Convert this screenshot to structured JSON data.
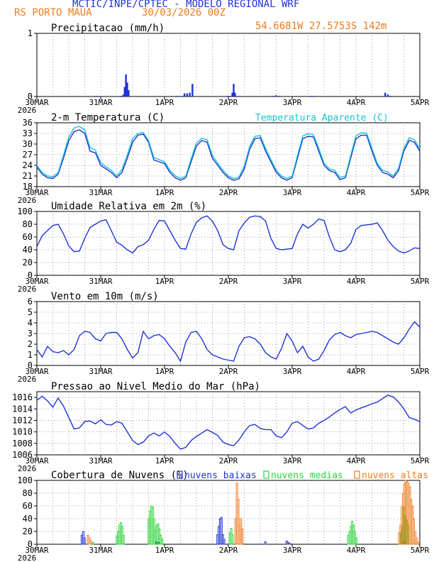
{
  "header": {
    "title": "MCTIC/INPE/CPTEC - MODELO REGIONAL WRF",
    "station": "RS PORTO MAUA",
    "date": "30/03/2026 00Z",
    "coords": "54.6681W 27.5753S 142m",
    "title_color": "#1f33d6",
    "accent_color": "#f07b1e"
  },
  "x_axis": {
    "ticks": [
      "30MAR",
      "31MAR",
      "1APR",
      "2APR",
      "3APR",
      "4APR",
      "5APR"
    ],
    "year": "2026"
  },
  "chart_data": [
    {
      "type": "bar",
      "title": "Precipitacao (mm/h)",
      "ylim": [
        0,
        1
      ],
      "yticks": [
        0,
        1
      ],
      "color": "#1f33d6",
      "x_hours": [
        22,
        22.7,
        31.5,
        32.5,
        33,
        33.5,
        34,
        34.5,
        52.5,
        53,
        54.5,
        55.5,
        56.5,
        57.5,
        58.5,
        71.5,
        72.5,
        73.5,
        74,
        74.5,
        75,
        89,
        90,
        91,
        103,
        104,
        131,
        132,
        133
      ],
      "values": [
        0.01,
        0.01,
        0.01,
        0.03,
        0.15,
        0.35,
        0.22,
        0.1,
        0.01,
        0.01,
        0.01,
        0.05,
        0.05,
        0.06,
        0.2,
        0.01,
        0.01,
        0.06,
        0.2,
        0.06,
        0.01,
        0.01,
        0.02,
        0.01,
        0.01,
        0.01,
        0.06,
        0.03,
        0.01
      ]
    },
    {
      "type": "line",
      "title": "2-m Temperatura (C)",
      "legend_label": "Temperatura Aparente (C)",
      "ylim": [
        18,
        36
      ],
      "yticks": [
        18,
        21,
        24,
        27,
        30,
        33,
        36
      ],
      "series": [
        {
          "name": "Temperatura (C)",
          "color": "#1f33d6",
          "x_hours": [
            0,
            2,
            4,
            6,
            8,
            10,
            12,
            14,
            16,
            18,
            20,
            22,
            24,
            26,
            28,
            30,
            32,
            34,
            36,
            38,
            40,
            42,
            44,
            46,
            48,
            50,
            52,
            54,
            56,
            58,
            60,
            62,
            64,
            66,
            68,
            70,
            72,
            74,
            76,
            78,
            80,
            82,
            84,
            86,
            88,
            90,
            92,
            94,
            96,
            98,
            100,
            102,
            104,
            106,
            108,
            110,
            112,
            114,
            116,
            118,
            120,
            122,
            124,
            126,
            128,
            130,
            132,
            134,
            136,
            138,
            140,
            142,
            144
          ],
          "values": [
            23.5,
            21.5,
            20.5,
            20.3,
            21.5,
            26,
            31,
            33.5,
            34,
            33,
            28,
            27.5,
            24,
            23,
            22,
            20.5,
            22,
            26,
            30.5,
            32.5,
            32.8,
            30.5,
            25.5,
            25,
            24.5,
            22,
            20.5,
            19.8,
            20.5,
            25,
            29.5,
            31,
            30.5,
            26,
            24,
            22,
            20.5,
            19.8,
            20.2,
            23,
            28.5,
            31.5,
            31.8,
            28,
            25,
            22,
            20.5,
            19.8,
            20.5,
            26,
            31.5,
            32.2,
            32,
            28,
            24,
            22.5,
            22,
            20,
            20.5,
            26,
            31.5,
            32.5,
            32.5,
            28,
            24,
            22,
            21.5,
            20.5,
            22.5,
            28,
            31,
            30.5,
            28
          ]
        },
        {
          "name": "Temperatura Aparente (C)",
          "color": "#19c4cc",
          "x_hours": [
            0,
            2,
            4,
            6,
            8,
            10,
            12,
            14,
            16,
            18,
            20,
            22,
            24,
            26,
            28,
            30,
            32,
            34,
            36,
            38,
            40,
            42,
            44,
            46,
            48,
            50,
            52,
            54,
            56,
            58,
            60,
            62,
            64,
            66,
            68,
            70,
            72,
            74,
            76,
            78,
            80,
            82,
            84,
            86,
            88,
            90,
            92,
            94,
            96,
            98,
            100,
            102,
            104,
            106,
            108,
            110,
            112,
            114,
            116,
            118,
            120,
            122,
            124,
            126,
            128,
            130,
            132,
            134,
            136,
            138,
            140,
            142,
            144
          ],
          "values": [
            24,
            22,
            21,
            20.8,
            22,
            26.8,
            32,
            34.5,
            35,
            34,
            29,
            28.3,
            24.8,
            23.6,
            22.6,
            21,
            22.8,
            27,
            31.5,
            33,
            33.2,
            31,
            26.2,
            25.6,
            25,
            22.6,
            21.1,
            20.3,
            21,
            25.8,
            30.3,
            31.6,
            31.2,
            26.8,
            24.6,
            22.6,
            21,
            20.3,
            20.7,
            23.8,
            29.3,
            32.2,
            32.4,
            28.8,
            25.6,
            22.6,
            21,
            20.3,
            21,
            26.8,
            32.3,
            32.9,
            32.6,
            28.8,
            24.6,
            23,
            22.6,
            20.6,
            21,
            26.8,
            32.3,
            33.2,
            33.1,
            28.8,
            24.6,
            22.6,
            22.1,
            21,
            23.2,
            28.8,
            31.8,
            31.2,
            28.6
          ]
        }
      ]
    },
    {
      "type": "line",
      "title": "Umidade Relativa em 2m (%)",
      "ylim": [
        0,
        100
      ],
      "yticks": [
        0,
        20,
        40,
        60,
        80,
        100
      ],
      "series": [
        {
          "name": "Umidade Relativa (%)",
          "color": "#1f33d6",
          "x_hours": [
            0,
            2,
            4,
            6,
            8,
            10,
            12,
            14,
            16,
            18,
            20,
            22,
            24,
            26,
            28,
            30,
            32,
            34,
            36,
            38,
            40,
            42,
            44,
            46,
            48,
            50,
            52,
            54,
            56,
            58,
            60,
            62,
            64,
            66,
            68,
            70,
            72,
            74,
            76,
            78,
            80,
            82,
            84,
            86,
            88,
            90,
            92,
            94,
            96,
            98,
            100,
            102,
            104,
            106,
            108,
            110,
            112,
            114,
            116,
            118,
            120,
            122,
            124,
            126,
            128,
            130,
            132,
            134,
            136,
            138,
            140,
            142,
            144
          ],
          "values": [
            45,
            62,
            70,
            78,
            80,
            65,
            46,
            37,
            38,
            58,
            75,
            80,
            85,
            87,
            70,
            52,
            47,
            40,
            35,
            45,
            48,
            55,
            72,
            86,
            85,
            70,
            55,
            42,
            41,
            65,
            83,
            90,
            93,
            85,
            70,
            48,
            42,
            40,
            70,
            82,
            91,
            93,
            92,
            85,
            58,
            42,
            40,
            41,
            42,
            65,
            80,
            74,
            80,
            88,
            86,
            60,
            40,
            37,
            40,
            50,
            72,
            78,
            79,
            80,
            82,
            70,
            55,
            45,
            38,
            35,
            38,
            43,
            42
          ]
        }
      ]
    },
    {
      "type": "line",
      "title": "Vento em 10m (m/s)",
      "ylim": [
        0,
        6
      ],
      "yticks": [
        0,
        1,
        2,
        3,
        4,
        5,
        6
      ],
      "series": [
        {
          "name": "Vento (m/s)",
          "color": "#1f33d6",
          "x_hours": [
            0,
            2,
            4,
            6,
            8,
            10,
            12,
            14,
            16,
            18,
            20,
            22,
            24,
            26,
            28,
            30,
            32,
            34,
            36,
            38,
            40,
            42,
            44,
            46,
            48,
            50,
            52,
            54,
            56,
            58,
            60,
            62,
            64,
            66,
            68,
            70,
            72,
            74,
            76,
            78,
            80,
            82,
            84,
            86,
            88,
            90,
            92,
            94,
            96,
            98,
            100,
            102,
            104,
            106,
            108,
            110,
            112,
            114,
            116,
            118,
            120,
            122,
            124,
            126,
            128,
            130,
            132,
            134,
            136,
            138,
            140,
            142,
            144
          ],
          "values": [
            1.5,
            0.8,
            1.8,
            1.3,
            1.2,
            1.4,
            1.0,
            1.5,
            2.8,
            3.2,
            3.1,
            2.5,
            2.3,
            3.0,
            3.1,
            3.1,
            2.5,
            1.5,
            0.7,
            1.2,
            3.2,
            2.5,
            2.8,
            2.9,
            2.5,
            1.8,
            1.2,
            0.4,
            2.2,
            3.1,
            3.2,
            2.5,
            1.5,
            1.0,
            0.8,
            0.6,
            0.5,
            0.4,
            1.8,
            2.6,
            2.7,
            2.5,
            2.0,
            1.2,
            0.8,
            0.6,
            1.6,
            3.0,
            2.3,
            1.2,
            1.8,
            0.8,
            0.4,
            0.6,
            1.4,
            2.4,
            2.9,
            3.1,
            2.8,
            2.6,
            2.9,
            3.0,
            3.1,
            3.2,
            3.1,
            2.8,
            2.5,
            2.2,
            2.0,
            2.6,
            3.4,
            4.1,
            3.6
          ]
        }
      ]
    },
    {
      "type": "line",
      "title": "Pressao ao Nivel Medio do Mar (hPa)",
      "ylim": [
        1006,
        1017
      ],
      "yticks": [
        1006,
        1008,
        1010,
        1012,
        1014,
        1016
      ],
      "series": [
        {
          "name": "Pressao (hPa)",
          "color": "#1f33d6",
          "x_hours": [
            0,
            2,
            4,
            6,
            8,
            10,
            12,
            14,
            16,
            18,
            20,
            22,
            24,
            26,
            28,
            30,
            32,
            34,
            36,
            38,
            40,
            42,
            44,
            46,
            48,
            50,
            52,
            54,
            56,
            58,
            60,
            62,
            64,
            66,
            68,
            70,
            72,
            74,
            76,
            78,
            80,
            82,
            84,
            86,
            88,
            90,
            92,
            94,
            96,
            98,
            100,
            102,
            104,
            106,
            108,
            110,
            112,
            114,
            116,
            118,
            120,
            122,
            124,
            126,
            128,
            130,
            132,
            134,
            136,
            138,
            140,
            142,
            144
          ],
          "values": [
            1015.5,
            1016.2,
            1015.4,
            1014.3,
            1015.9,
            1014.5,
            1012.5,
            1010.5,
            1010.7,
            1011.8,
            1011.9,
            1011.4,
            1012.1,
            1011.3,
            1011.2,
            1011.8,
            1011.5,
            1010.0,
            1008.5,
            1007.8,
            1008.2,
            1009.3,
            1009.8,
            1009.3,
            1010.0,
            1009.2,
            1008.0,
            1007.0,
            1007.3,
            1008.5,
            1009.2,
            1009.8,
            1010.4,
            1009.9,
            1009.4,
            1008.2,
            1007.8,
            1007.6,
            1008.6,
            1010.0,
            1011.1,
            1011.3,
            1010.6,
            1010.4,
            1010.4,
            1009.3,
            1009.0,
            1010.0,
            1011.5,
            1011.8,
            1011.1,
            1010.5,
            1010.7,
            1011.5,
            1012.0,
            1012.6,
            1013.3,
            1013.9,
            1014.4,
            1013.3,
            1013.8,
            1014.2,
            1014.5,
            1014.9,
            1015.2,
            1015.8,
            1016.4,
            1016.1,
            1015.2,
            1014.0,
            1012.5,
            1012.2,
            1011.8
          ]
        }
      ]
    },
    {
      "type": "bar",
      "title": "Cobertura de Nuvens (%)",
      "ylim": [
        0,
        100
      ],
      "yticks": [
        0,
        20,
        40,
        60,
        80,
        100
      ],
      "legend": [
        "nuvens baixas",
        "nuvens medias",
        "nuvens altas"
      ],
      "series": [
        {
          "name": "nuvens baixas",
          "color": "#1f33d6",
          "x_hours": [
            17,
            17.5,
            18,
            45,
            46,
            68,
            68.5,
            69,
            69.5,
            70,
            70.5,
            86,
            94,
            94.5,
            95,
            138,
            138.5
          ],
          "values": [
            14,
            20,
            10,
            4,
            3,
            15,
            28,
            40,
            42,
            15,
            8,
            4,
            5,
            3,
            2,
            6,
            4
          ]
        },
        {
          "name": "nuvens medias",
          "color": "#2fd33a",
          "x_hours": [
            21,
            30,
            30.5,
            31,
            31.5,
            32,
            32.5,
            42,
            42.5,
            43,
            43.5,
            44,
            44.5,
            45,
            45.5,
            46,
            46.5,
            47,
            72.5,
            73,
            73.5,
            117,
            117.5,
            118,
            118.5,
            119,
            119.5,
            120,
            137,
            137.5,
            138,
            138.5,
            139,
            139.5
          ],
          "values": [
            3,
            13,
            20,
            30,
            34,
            28,
            14,
            40,
            52,
            60,
            58,
            40,
            22,
            30,
            32,
            24,
            14,
            8,
            18,
            25,
            15,
            14,
            20,
            28,
            36,
            30,
            20,
            10,
            18,
            28,
            58,
            44,
            38,
            30
          ]
        },
        {
          "name": "nuvens altas",
          "color": "#f07b1e",
          "x_hours": [
            19,
            19.5,
            20,
            74.5,
            75,
            75.5,
            76,
            76.5,
            77,
            136,
            136.5,
            137,
            137.5,
            138,
            138.5,
            139,
            139.5,
            140,
            140.5,
            141,
            141.5,
            142,
            142.5,
            143
          ],
          "values": [
            14,
            10,
            6,
            40,
            96,
            70,
            30,
            40,
            24,
            18,
            30,
            58,
            80,
            95,
            100,
            98,
            95,
            90,
            70,
            60,
            40,
            20,
            10,
            4
          ]
        }
      ]
    }
  ]
}
